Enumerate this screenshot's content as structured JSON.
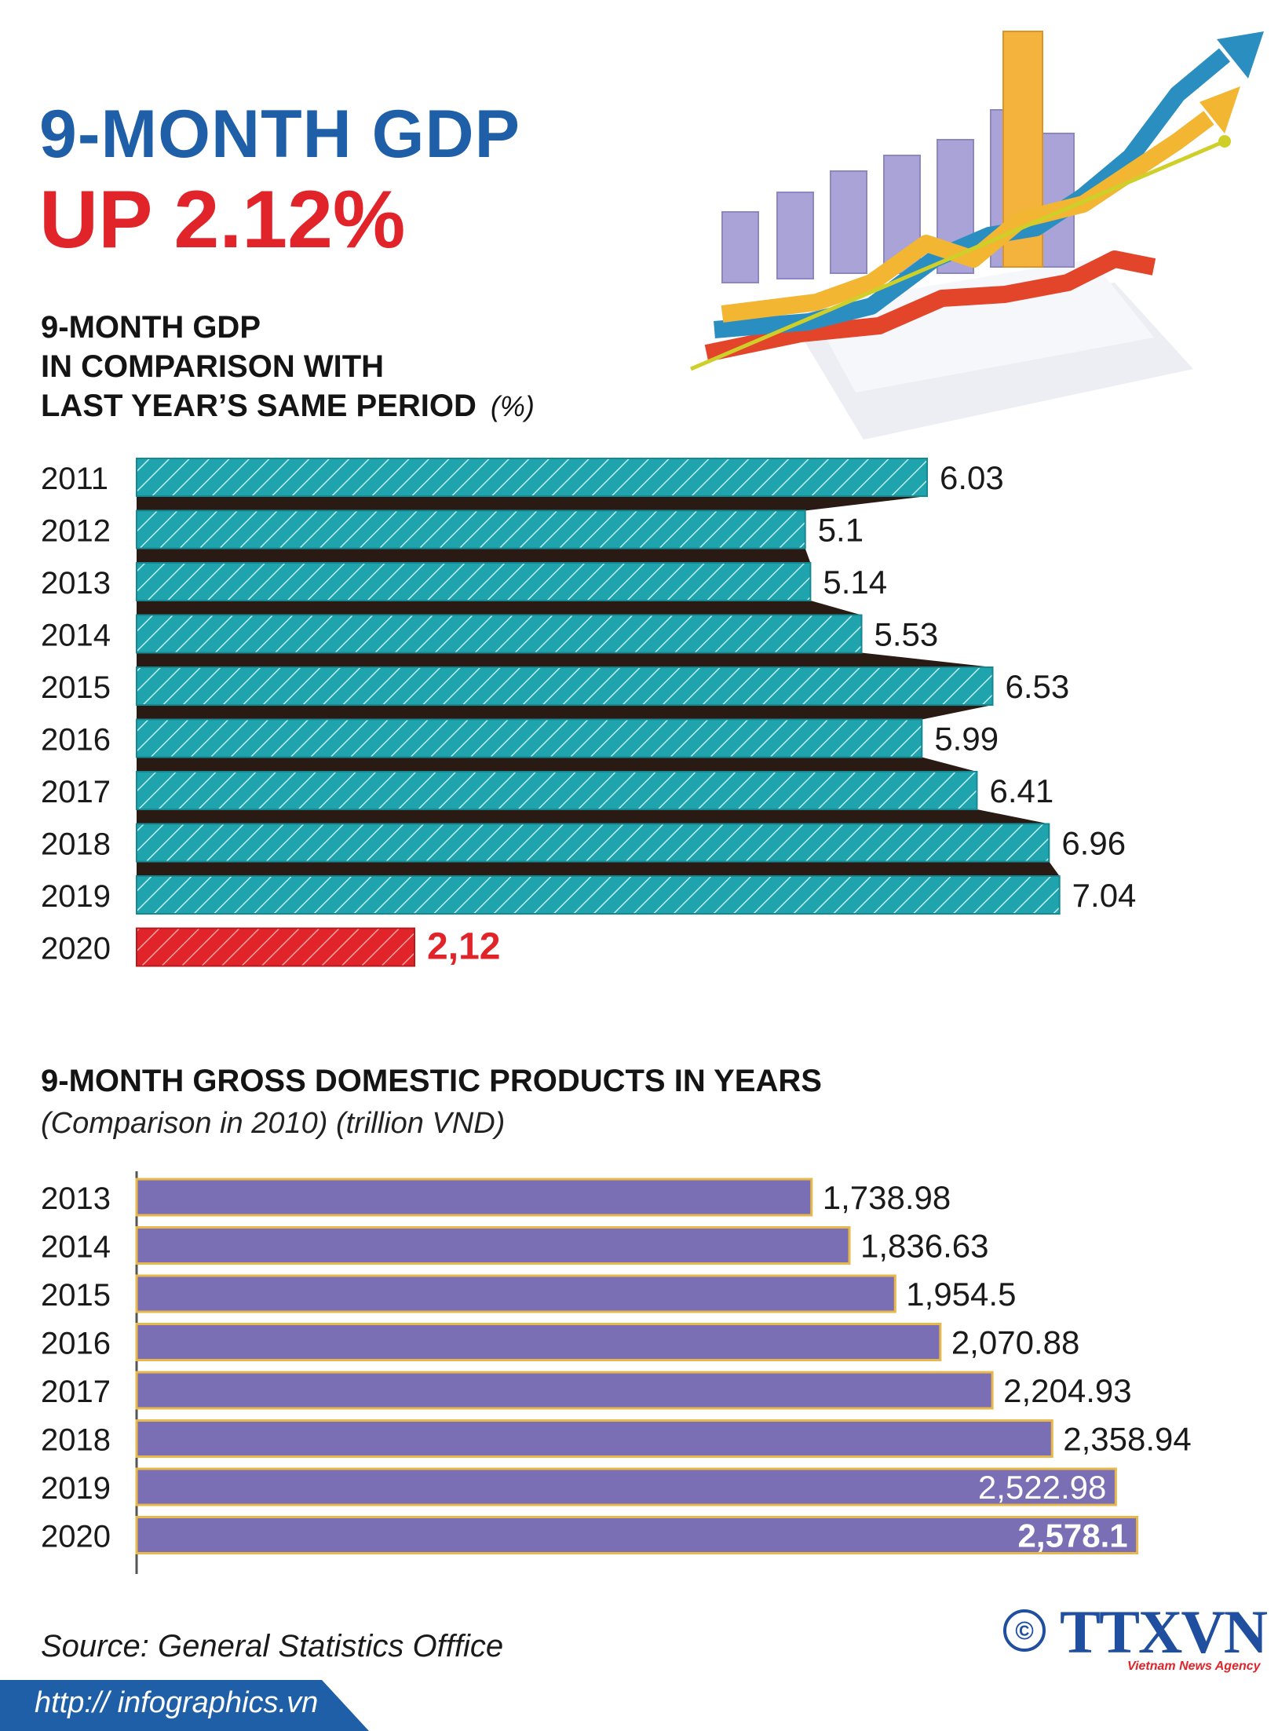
{
  "header": {
    "title_line1": "9-MONTH GDP",
    "title_line2": "UP 2.12%"
  },
  "section1": {
    "heading_line1": "9-MONTH GDP",
    "heading_line2": "IN COMPARISON WITH",
    "heading_line3": "LAST YEAR’S SAME PERIOD",
    "unit": "(%)"
  },
  "section2": {
    "heading": "9-MONTH GROSS DOMESTIC PRODUCTS IN YEARS",
    "note": "(Comparison in 2010) (trillion VND)"
  },
  "chart_data": [
    {
      "type": "bar",
      "orientation": "horizontal",
      "categories": [
        "2011",
        "2012",
        "2013",
        "2014",
        "2015",
        "2016",
        "2017",
        "2018",
        "2019",
        "2020"
      ],
      "values": [
        6.03,
        5.1,
        5.14,
        5.53,
        6.53,
        5.99,
        6.41,
        6.96,
        7.04,
        2.12
      ],
      "labels": [
        "6.03",
        "5.1",
        "5.14",
        "5.53",
        "6.53",
        "5.99",
        "6.41",
        "6.96",
        "7.04",
        "2,12"
      ],
      "colors": {
        "bar": "#1fa3ad",
        "highlight": "#e0242a",
        "hatch": "#bfeff1",
        "shadow": "#2a1a14"
      },
      "highlight_index": 9
    },
    {
      "type": "bar",
      "orientation": "horizontal",
      "categories": [
        "2013",
        "2014",
        "2015",
        "2016",
        "2017",
        "2018",
        "2019",
        "2020"
      ],
      "values": [
        1738.98,
        1836.63,
        1954.5,
        2070.88,
        2204.93,
        2358.94,
        2522.98,
        2578.1
      ],
      "labels": [
        "1,738.98",
        "1,836.63",
        "1,954.5",
        "2,070.88",
        "2,204.93",
        "2,358.94",
        "2,522.98",
        "2,578.1"
      ],
      "colors": {
        "bar": "#7a6fb5",
        "border": "#e8b84a",
        "label_inside": "#ffffff"
      }
    }
  ],
  "footer": {
    "source": "Source: General Statistics Offfice",
    "url": "http:// infographics.vn",
    "copyright": "©",
    "logo": "TTXVN",
    "logo_sub": "Vietnam News Agency"
  }
}
